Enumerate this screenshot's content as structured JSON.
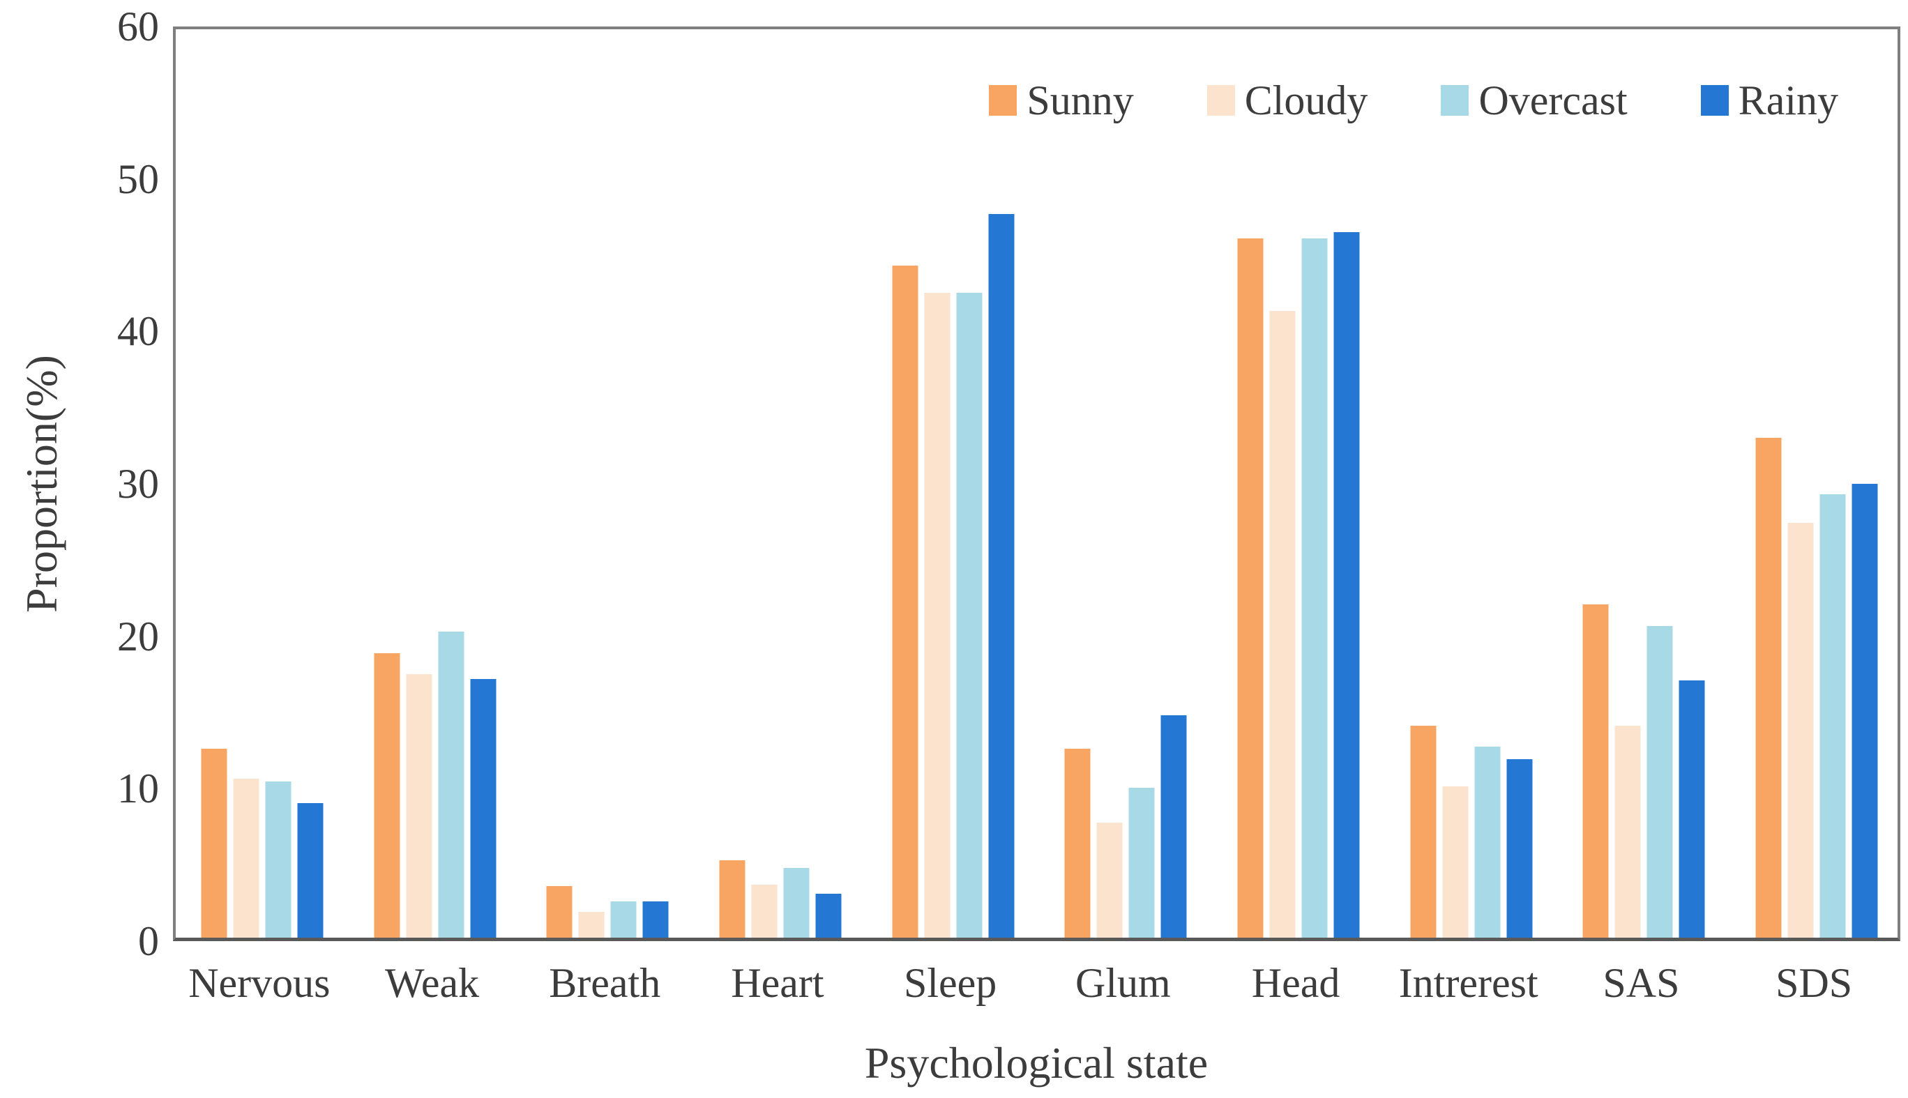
{
  "chart_data": {
    "type": "bar",
    "title": "",
    "xlabel": "Psychological state",
    "ylabel": "Proportion(%)",
    "ylim": [
      0,
      60
    ],
    "yticks": [
      0,
      10,
      20,
      30,
      40,
      50,
      60
    ],
    "grid": false,
    "legend_position": "top-right-inside",
    "categories": [
      "Nervous",
      "Weak",
      "Breath",
      "Heart",
      "Sleep",
      "Glum",
      "Head",
      "Intrerest",
      "SAS",
      "SDS"
    ],
    "series": [
      {
        "name": "Sunny",
        "color": "#F8A462",
        "values": [
          12.5,
          18.8,
          3.4,
          5.1,
          44.4,
          12.5,
          46.2,
          14.0,
          22.0,
          33.0
        ]
      },
      {
        "name": "Cloudy",
        "color": "#FBE3CE",
        "values": [
          10.5,
          17.4,
          1.7,
          3.5,
          42.6,
          7.6,
          41.4,
          10.0,
          14.0,
          27.4
        ]
      },
      {
        "name": "Overcast",
        "color": "#A7DAE6",
        "values": [
          10.3,
          20.2,
          2.4,
          4.6,
          42.6,
          9.9,
          46.2,
          12.6,
          20.6,
          29.3
        ]
      },
      {
        "name": "Rainy",
        "color": "#2478D4",
        "values": [
          8.9,
          17.1,
          2.4,
          2.9,
          47.8,
          14.7,
          46.6,
          11.8,
          17.0,
          30.0
        ]
      }
    ],
    "axis_color": "#7f7f7f",
    "text_color": "#3c3c3c"
  }
}
